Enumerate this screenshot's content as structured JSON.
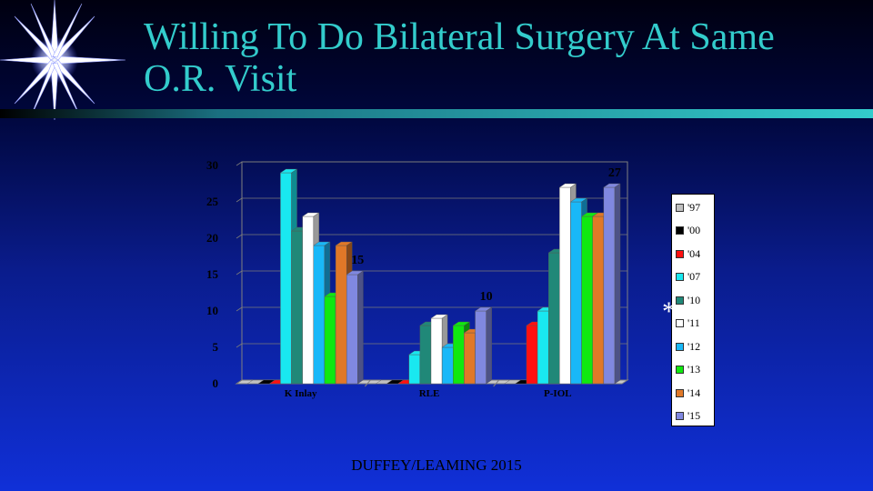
{
  "slide": {
    "title": "Willing To Do Bilateral Surgery At Same O.R. Visit",
    "footer": "DUFFEY/LEAMING 2015",
    "asterisk": "*"
  },
  "chart_data": {
    "type": "bar",
    "title": "",
    "xlabel": "",
    "ylabel": "",
    "ylim": [
      0,
      30
    ],
    "yticks": [
      0,
      5,
      10,
      15,
      20,
      25,
      30
    ],
    "grid": true,
    "legend_position": "right",
    "categories": [
      "K Inlay",
      "RLE",
      "P-IOL"
    ],
    "series": [
      {
        "name": "'97",
        "color": "#c0c0c0",
        "values": [
          0,
          0,
          0
        ]
      },
      {
        "name": "'00",
        "color": "#000000",
        "values": [
          0,
          0,
          0
        ]
      },
      {
        "name": "'04",
        "color": "#ff1010",
        "values": [
          0,
          0,
          8
        ]
      },
      {
        "name": "'07",
        "color": "#19e8f0",
        "values": [
          29,
          4,
          10
        ]
      },
      {
        "name": "'10",
        "color": "#208878",
        "values": [
          21,
          8,
          18
        ]
      },
      {
        "name": "'11",
        "color": "#ffffff",
        "values": [
          23,
          9,
          27
        ]
      },
      {
        "name": "'12",
        "color": "#19b8f8",
        "values": [
          19,
          5,
          25
        ]
      },
      {
        "name": "'13",
        "color": "#10e810",
        "values": [
          12,
          8,
          23
        ]
      },
      {
        "name": "'14",
        "color": "#e07828",
        "values": [
          19,
          7,
          23
        ]
      },
      {
        "name": "'15",
        "color": "#8088e0",
        "values": [
          15,
          10,
          27
        ]
      }
    ],
    "annotations": [
      {
        "text": "15",
        "category": "K Inlay",
        "series": "'15"
      },
      {
        "text": "10",
        "category": "RLE",
        "series": "'15"
      },
      {
        "text": "27",
        "category": "P-IOL",
        "series": "'15"
      }
    ]
  }
}
